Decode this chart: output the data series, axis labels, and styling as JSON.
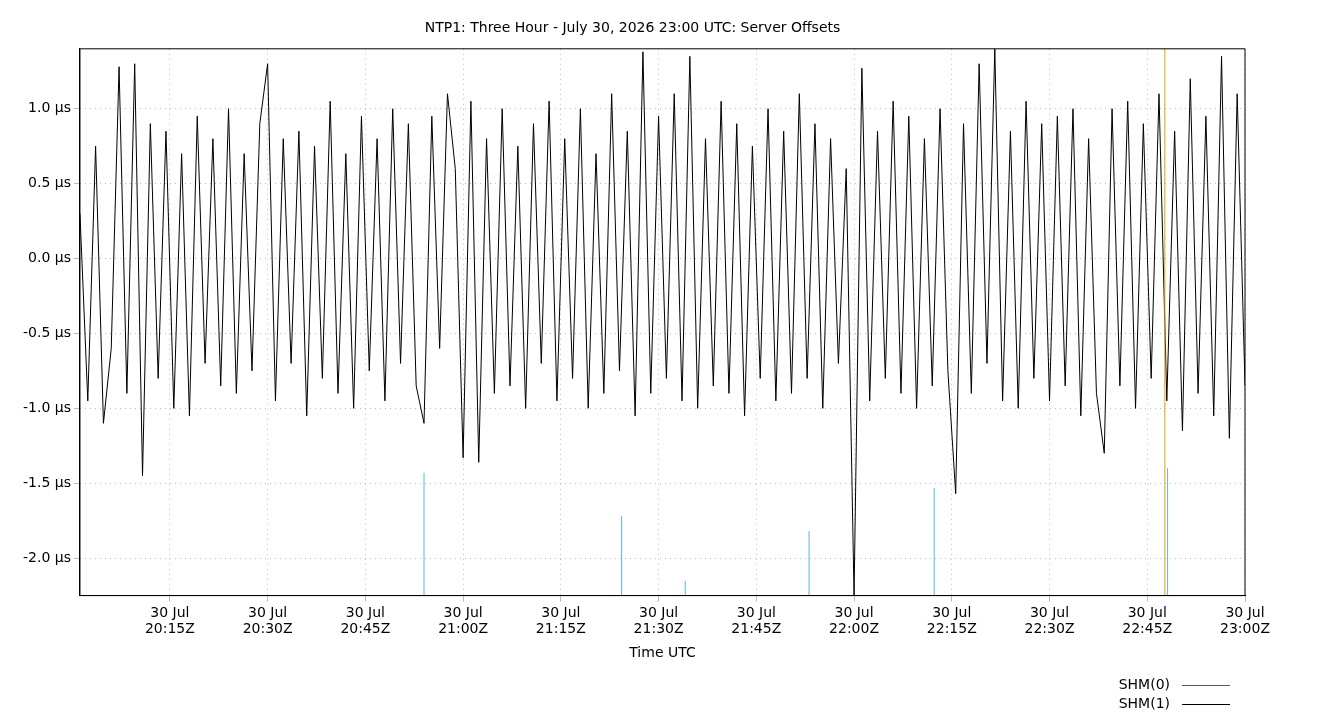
{
  "chart_data": {
    "type": "line",
    "title": "NTP1: Three Hour - July 30, 2026 23:00 UTC: Server Offsets",
    "xlabel": "Time UTC",
    "x": [
      "2026-07-30T20:01:12",
      "2026-07-30T20:02:24",
      "2026-07-30T20:03:36",
      "2026-07-30T20:04:48",
      "2026-07-30T20:06:00",
      "2026-07-30T20:07:12",
      "2026-07-30T20:08:24",
      "2026-07-30T20:09:36",
      "2026-07-30T20:10:48",
      "2026-07-30T20:12:00",
      "2026-07-30T20:13:12",
      "2026-07-30T20:14:24",
      "2026-07-30T20:15:36",
      "2026-07-30T20:16:48",
      "2026-07-30T20:18:00",
      "2026-07-30T20:19:12",
      "2026-07-30T20:20:24",
      "2026-07-30T20:21:36",
      "2026-07-30T20:22:48",
      "2026-07-30T20:24:00",
      "2026-07-30T20:25:12",
      "2026-07-30T20:26:24",
      "2026-07-30T20:27:36",
      "2026-07-30T20:28:48",
      "2026-07-30T20:30:00",
      "2026-07-30T20:31:12",
      "2026-07-30T20:32:24",
      "2026-07-30T20:33:36",
      "2026-07-30T20:34:48",
      "2026-07-30T20:36:00",
      "2026-07-30T20:37:12",
      "2026-07-30T20:38:24",
      "2026-07-30T20:39:36",
      "2026-07-30T20:40:48",
      "2026-07-30T20:42:00",
      "2026-07-30T20:43:12",
      "2026-07-30T20:44:24",
      "2026-07-30T20:45:36",
      "2026-07-30T20:46:48",
      "2026-07-30T20:48:00",
      "2026-07-30T20:49:12",
      "2026-07-30T20:50:24",
      "2026-07-30T20:51:36",
      "2026-07-30T20:52:48",
      "2026-07-30T20:54:00",
      "2026-07-30T20:55:12",
      "2026-07-30T20:56:24",
      "2026-07-30T20:57:36",
      "2026-07-30T20:58:48",
      "2026-07-30T21:00:00",
      "2026-07-30T21:01:12",
      "2026-07-30T21:02:24",
      "2026-07-30T21:03:36",
      "2026-07-30T21:04:48",
      "2026-07-30T21:06:00",
      "2026-07-30T21:07:12",
      "2026-07-30T21:08:24",
      "2026-07-30T21:09:36",
      "2026-07-30T21:10:48",
      "2026-07-30T21:12:00",
      "2026-07-30T21:13:12",
      "2026-07-30T21:14:24",
      "2026-07-30T21:15:36",
      "2026-07-30T21:16:48",
      "2026-07-30T21:18:00",
      "2026-07-30T21:19:12",
      "2026-07-30T21:20:24",
      "2026-07-30T21:21:36",
      "2026-07-30T21:22:48",
      "2026-07-30T21:24:00",
      "2026-07-30T21:25:12",
      "2026-07-30T21:26:24",
      "2026-07-30T21:27:36",
      "2026-07-30T21:28:48",
      "2026-07-30T21:30:00",
      "2026-07-30T21:31:12",
      "2026-07-30T21:32:24",
      "2026-07-30T21:33:36",
      "2026-07-30T21:34:48",
      "2026-07-30T21:36:00",
      "2026-07-30T21:37:12",
      "2026-07-30T21:38:24",
      "2026-07-30T21:39:36",
      "2026-07-30T21:40:48",
      "2026-07-30T21:42:00",
      "2026-07-30T21:43:12",
      "2026-07-30T21:44:24",
      "2026-07-30T21:45:36",
      "2026-07-30T21:46:48",
      "2026-07-30T21:48:00",
      "2026-07-30T21:49:12",
      "2026-07-30T21:50:24",
      "2026-07-30T21:51:36",
      "2026-07-30T21:52:48",
      "2026-07-30T21:54:00",
      "2026-07-30T21:55:12",
      "2026-07-30T21:56:24",
      "2026-07-30T21:57:36",
      "2026-07-30T21:58:48",
      "2026-07-30T22:00:00",
      "2026-07-30T22:01:12",
      "2026-07-30T22:02:24",
      "2026-07-30T22:03:36",
      "2026-07-30T22:04:48",
      "2026-07-30T22:06:00",
      "2026-07-30T22:07:12",
      "2026-07-30T22:08:24",
      "2026-07-30T22:09:36",
      "2026-07-30T22:10:48",
      "2026-07-30T22:12:00",
      "2026-07-30T22:13:12",
      "2026-07-30T22:14:24",
      "2026-07-30T22:15:36",
      "2026-07-30T22:16:48",
      "2026-07-30T22:18:00",
      "2026-07-30T22:19:12",
      "2026-07-30T22:20:24",
      "2026-07-30T22:21:36",
      "2026-07-30T22:22:48",
      "2026-07-30T22:24:00",
      "2026-07-30T22:25:12",
      "2026-07-30T22:26:24",
      "2026-07-30T22:27:36",
      "2026-07-30T22:28:48",
      "2026-07-30T22:30:00",
      "2026-07-30T22:31:12",
      "2026-07-30T22:32:24",
      "2026-07-30T22:33:36",
      "2026-07-30T22:34:48",
      "2026-07-30T22:36:00",
      "2026-07-30T22:37:12",
      "2026-07-30T22:38:24",
      "2026-07-30T22:39:36",
      "2026-07-30T22:40:48",
      "2026-07-30T22:42:00",
      "2026-07-30T22:43:12",
      "2026-07-30T22:44:24",
      "2026-07-30T22:45:36",
      "2026-07-30T22:46:48",
      "2026-07-30T22:48:00",
      "2026-07-30T22:49:12",
      "2026-07-30T22:50:24",
      "2026-07-30T22:51:36",
      "2026-07-30T22:52:48",
      "2026-07-30T22:54:00",
      "2026-07-30T22:55:12",
      "2026-07-30T22:56:24",
      "2026-07-30T22:57:36",
      "2026-07-30T22:58:48",
      "2026-07-30T23:00:00"
    ],
    "series": [
      {
        "color": "#56b4e9",
        "x": [
          "2026-07-30T20:54:00",
          "2026-07-30T20:54:00"
        ],
        "values": [
          -2.25,
          -1.43
        ]
      },
      {
        "color": "#56b4e9",
        "x": [
          "2026-07-30T21:24:20",
          "2026-07-30T21:24:20"
        ],
        "values": [
          -2.25,
          -1.72
        ]
      },
      {
        "color": "#56b4e9",
        "x": [
          "2026-07-30T21:34:05",
          "2026-07-30T21:34:05"
        ],
        "values": [
          -2.25,
          -2.15
        ]
      },
      {
        "color": "#56b4e9",
        "x": [
          "2026-07-30T21:53:06",
          "2026-07-30T21:53:06"
        ],
        "values": [
          -2.25,
          -1.82
        ]
      },
      {
        "color": "#56b4e9",
        "x": [
          "2026-07-30T22:12:18",
          "2026-07-30T22:12:18"
        ],
        "values": [
          -2.25,
          -1.53
        ]
      },
      {
        "color": "#56b4e9",
        "x": [
          "2026-07-30T22:48:07",
          "2026-07-30T22:48:07"
        ],
        "values": [
          -2.25,
          -1.4
        ]
      },
      {
        "color": "#e69f00",
        "x": [
          "2026-07-30T22:47:42",
          "2026-07-30T22:47:42"
        ],
        "values": [
          -2.25,
          1.4
        ]
      },
      {
        "name": "SHM(0)",
        "color": "#e51e10",
        "values": [
          null,
          null,
          null,
          null,
          null,
          null,
          null,
          null,
          null,
          null,
          null,
          null,
          null,
          null,
          null,
          null,
          null,
          null,
          null,
          null,
          null,
          null,
          null,
          null,
          null,
          null,
          null,
          null,
          null,
          null,
          null,
          null,
          null,
          null,
          null,
          null,
          null,
          null,
          null,
          null,
          null,
          null,
          null,
          null,
          null,
          null,
          null,
          null,
          null,
          null,
          null,
          null,
          null,
          null,
          null,
          null,
          null,
          null,
          null,
          null,
          null,
          null,
          null,
          null,
          null,
          null,
          null,
          null,
          null,
          null,
          null,
          null,
          null,
          null,
          null,
          null,
          null,
          null,
          null,
          null,
          null,
          null,
          null,
          null,
          null,
          null,
          null,
          null,
          null,
          null,
          null,
          null,
          null,
          null,
          null,
          null,
          null,
          null,
          null,
          null,
          null,
          null,
          null,
          null,
          null,
          null,
          null,
          null,
          null,
          null,
          null,
          null,
          null,
          null,
          null,
          null,
          null,
          null,
          null,
          null,
          null,
          null,
          null,
          null,
          null,
          null,
          null,
          null,
          null,
          null,
          null,
          null,
          null,
          null,
          null,
          null,
          null,
          null,
          null,
          null,
          null,
          null,
          null,
          null,
          null,
          null,
          null,
          null,
          null,
          null
        ]
      },
      {
        "name": "SHM(1)",
        "color": "#000000",
        "values": [
          0.3,
          -0.95,
          0.75,
          -1.1,
          -0.6,
          1.28,
          -0.9,
          1.3,
          -1.45,
          0.9,
          -0.8,
          0.85,
          -1.0,
          0.7,
          -1.05,
          0.95,
          -0.7,
          0.8,
          -0.85,
          1.0,
          -0.9,
          0.7,
          -0.75,
          0.9,
          1.3,
          -0.95,
          0.8,
          -0.7,
          0.85,
          -1.05,
          0.75,
          -0.8,
          1.05,
          -0.9,
          0.7,
          -1.0,
          0.95,
          -0.75,
          0.8,
          -0.95,
          1.0,
          -0.7,
          0.9,
          -0.85,
          -1.1,
          0.95,
          -0.6,
          1.1,
          0.6,
          -1.33,
          1.05,
          -1.36,
          0.8,
          -0.9,
          1.0,
          -0.85,
          0.75,
          -1.0,
          0.9,
          -0.7,
          1.05,
          -0.95,
          0.8,
          -0.8,
          1.0,
          -1.0,
          0.7,
          -0.9,
          1.1,
          -0.75,
          0.85,
          -1.05,
          1.38,
          -0.9,
          0.95,
          -0.8,
          1.1,
          -0.95,
          1.35,
          -1.0,
          0.8,
          -0.85,
          1.05,
          -0.9,
          0.9,
          -1.05,
          0.75,
          -0.8,
          1.0,
          -0.95,
          0.85,
          -0.9,
          1.1,
          -0.8,
          0.9,
          -1.0,
          0.8,
          -0.7,
          0.6,
          -2.25,
          1.27,
          -0.95,
          0.85,
          -0.8,
          1.05,
          -0.9,
          0.95,
          -1.0,
          0.8,
          -0.85,
          1.0,
          -0.75,
          -1.57,
          0.9,
          -0.9,
          1.3,
          -0.7,
          1.4,
          -0.95,
          0.85,
          -1.0,
          1.05,
          -0.8,
          0.9,
          -0.95,
          0.95,
          -0.85,
          1.0,
          -1.05,
          0.8,
          -0.9,
          -1.3,
          1.0,
          -0.85,
          1.05,
          -1.0,
          0.9,
          -0.8,
          1.1,
          -0.95,
          0.85,
          -1.15,
          1.2,
          -0.9,
          0.95,
          -1.05,
          1.35,
          -1.2,
          1.1,
          -0.85
        ]
      }
    ],
    "xlim": [
      "2026-07-30T20:01:12",
      "2026-07-30T23:00:00"
    ],
    "xticks": [
      {
        "value": "2026-07-30T20:15",
        "label": "30 Jul\n20:15Z"
      },
      {
        "value": "2026-07-30T20:30",
        "label": "30 Jul\n20:30Z"
      },
      {
        "value": "2026-07-30T20:45",
        "label": "30 Jul\n20:45Z"
      },
      {
        "value": "2026-07-30T21:00",
        "label": "30 Jul\n21:00Z"
      },
      {
        "value": "2026-07-30T21:15",
        "label": "30 Jul\n21:15Z"
      },
      {
        "value": "2026-07-30T21:30",
        "label": "30 Jul\n21:30Z"
      },
      {
        "value": "2026-07-30T21:45",
        "label": "30 Jul\n21:45Z"
      },
      {
        "value": "2026-07-30T22:00",
        "label": "30 Jul\n22:00Z"
      },
      {
        "value": "2026-07-30T22:15",
        "label": "30 Jul\n22:15Z"
      },
      {
        "value": "2026-07-30T22:30",
        "label": "30 Jul\n22:30Z"
      },
      {
        "value": "2026-07-30T22:45",
        "label": "30 Jul\n22:45Z"
      },
      {
        "value": "2026-07-30T23:00",
        "label": "30 Jul\n23:00Z"
      }
    ],
    "ylim": [
      -2.25,
      1.4
    ],
    "yticks": [
      {
        "value": -2,
        "label": "-2.0 µs"
      },
      {
        "value": -1.5,
        "label": "-1.5 µs"
      },
      {
        "value": -1,
        "label": "-1.0 µs"
      },
      {
        "value": -0.5,
        "label": "-0.5 µs"
      },
      {
        "value": 0,
        "label": "0.0 µs"
      },
      {
        "value": 0.5,
        "label": "0.5 µs"
      },
      {
        "value": 1,
        "label": "1.0 µs"
      }
    ],
    "grid": true,
    "legend": "bottom right",
    "marker": "none",
    "line_style": "solid"
  }
}
